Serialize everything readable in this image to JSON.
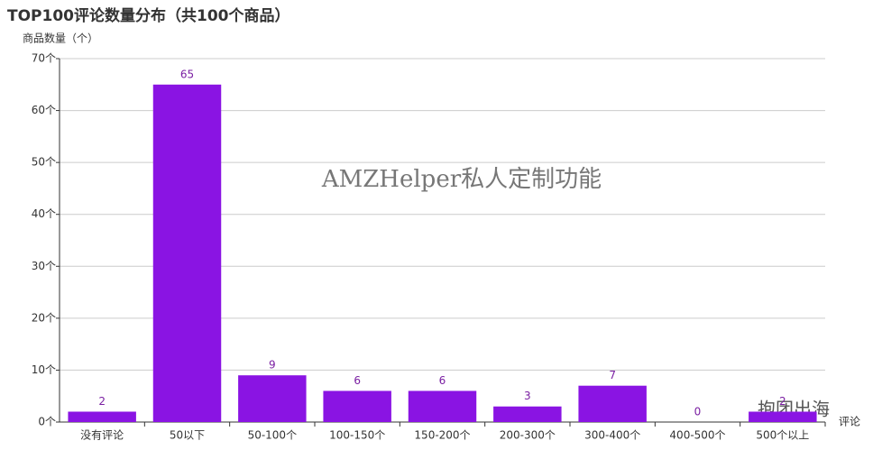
{
  "chart_data": {
    "type": "bar",
    "title": "TOP100评论数量分布（共100个商品）",
    "y_label": "商品数量（个）",
    "x_label": "评论",
    "annotations": [
      "AMZHelper私人定制功能",
      "抱团出海"
    ],
    "categories": [
      "没有评论",
      "50以下",
      "50-100个",
      "100-150个",
      "150-200个",
      "200-300个",
      "300-400个",
      "400-500个",
      "500个以上"
    ],
    "values": [
      2,
      65,
      9,
      6,
      6,
      3,
      7,
      0,
      2
    ],
    "color": "#8a14e3",
    "ylim": [
      0,
      70
    ],
    "yticks": [
      {
        "value": 0,
        "label": "0个"
      },
      {
        "value": 10,
        "label": "10个"
      },
      {
        "value": 20,
        "label": "20个"
      },
      {
        "value": 30,
        "label": "30个"
      },
      {
        "value": 40,
        "label": "40个"
      },
      {
        "value": 50,
        "label": "50个"
      },
      {
        "value": 60,
        "label": "60个"
      },
      {
        "value": 70,
        "label": "70个"
      }
    ],
    "grid": true
  }
}
